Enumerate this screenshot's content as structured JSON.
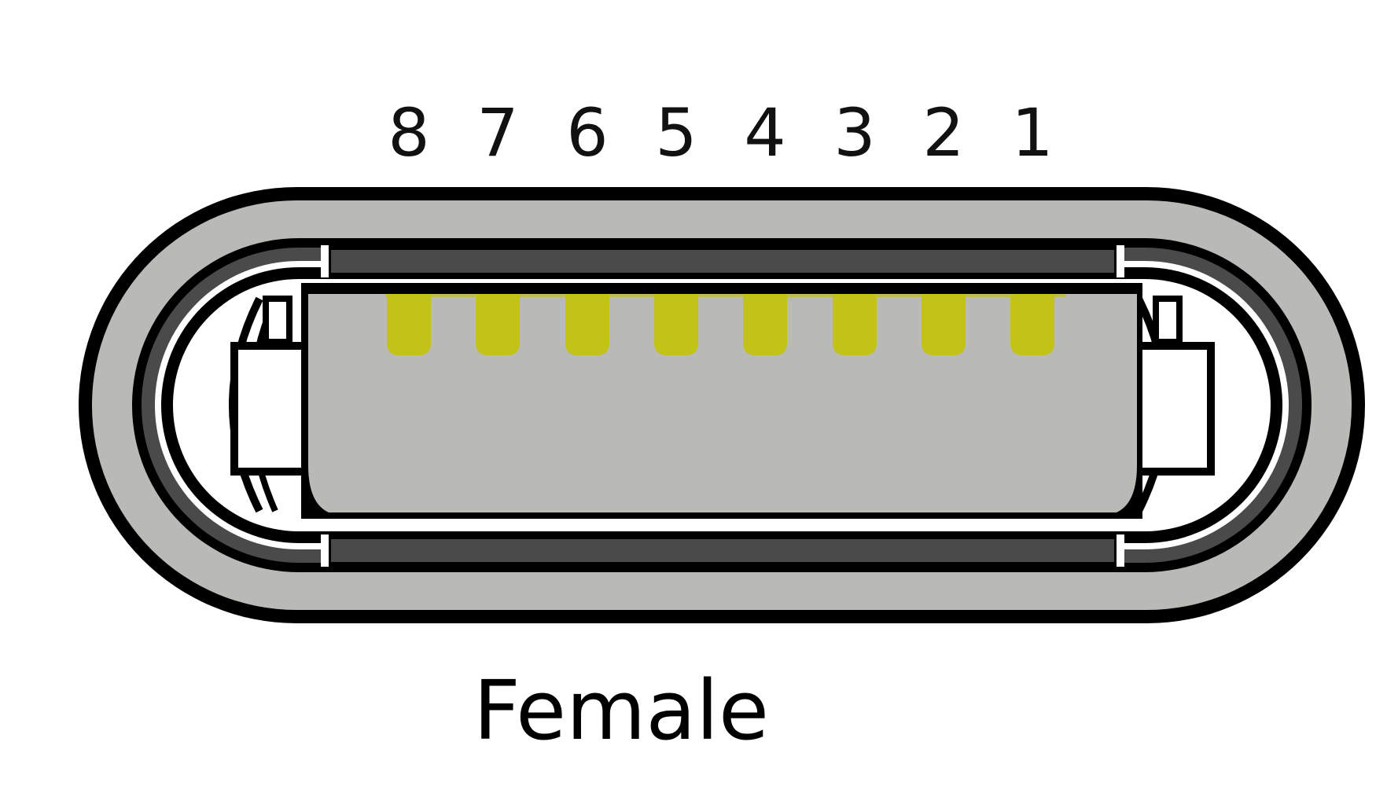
{
  "pin_numbers": [
    "8",
    "7",
    "6",
    "5",
    "4",
    "3",
    "2",
    "1"
  ],
  "caption": "Female",
  "colors": {
    "shell_outline": "#000000",
    "shell_fill": "#b9bab5",
    "rail_dark": "#4a4a4a",
    "contact": "#c2c316",
    "background": "#ffffff"
  }
}
